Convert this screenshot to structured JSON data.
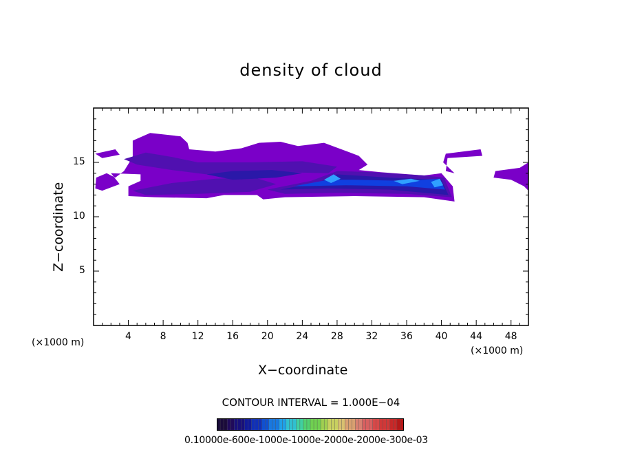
{
  "chart_data": {
    "type": "heatmap",
    "title": "density of cloud",
    "xlabel": "X−coordinate",
    "ylabel": "Z−coordinate",
    "x_unit_left": "(×1000 m)",
    "x_unit_right": "(×1000 m)",
    "xlim": [
      0,
      50
    ],
    "ylim": [
      0,
      20
    ],
    "x_ticks": [
      4,
      8,
      12,
      16,
      20,
      24,
      28,
      32,
      36,
      40,
      44,
      48
    ],
    "y_ticks": [
      5,
      10,
      15
    ],
    "contour_interval_text": "CONTOUR INTERVAL = 1.000E−04",
    "colorbar_labels_text": "0.10000e-600e-1000e-1000e-2000e-2000e-300e-03",
    "colors": {
      "low": "#7a00c8",
      "mid_low": "#5010b0",
      "mid": "#2a18a8",
      "high": "#1040e0",
      "peak": "#30a0ff"
    },
    "regions": [
      {
        "level": "low",
        "points": [
          [
            0.2,
            12.6
          ],
          [
            0.3,
            13.6
          ],
          [
            1.5,
            14.0
          ],
          [
            2.5,
            13.6
          ],
          [
            3.5,
            14.2
          ],
          [
            4.5,
            15.5
          ],
          [
            4.5,
            17.0
          ],
          [
            6.5,
            17.7
          ],
          [
            10.0,
            17.4
          ],
          [
            10.8,
            16.8
          ],
          [
            11.0,
            16.2
          ],
          [
            14.0,
            16.0
          ],
          [
            17.0,
            16.3
          ],
          [
            19.0,
            16.8
          ],
          [
            21.5,
            16.9
          ],
          [
            23.5,
            16.5
          ],
          [
            26.5,
            16.8
          ],
          [
            28.5,
            16.2
          ],
          [
            30.5,
            15.6
          ],
          [
            31.5,
            14.8
          ],
          [
            30.5,
            14.3
          ],
          [
            33.0,
            14.1
          ],
          [
            38.0,
            13.8
          ],
          [
            40.0,
            14.0
          ],
          [
            41.3,
            12.8
          ],
          [
            41.5,
            11.4
          ],
          [
            38.0,
            11.8
          ],
          [
            30.0,
            11.9
          ],
          [
            22.0,
            11.8
          ],
          [
            19.5,
            11.6
          ],
          [
            18.8,
            12.0
          ],
          [
            15.0,
            12.0
          ],
          [
            13.0,
            11.7
          ],
          [
            7.0,
            11.8
          ],
          [
            4.0,
            11.9
          ],
          [
            4.0,
            12.8
          ],
          [
            5.4,
            13.3
          ],
          [
            5.4,
            13.9
          ],
          [
            2.0,
            14.0
          ],
          [
            3.0,
            13.0
          ],
          [
            1.0,
            12.4
          ]
        ]
      },
      {
        "level": "low",
        "points": [
          [
            0.2,
            15.8
          ],
          [
            2.5,
            16.2
          ],
          [
            3.0,
            15.7
          ],
          [
            1.0,
            15.4
          ]
        ]
      },
      {
        "level": "low",
        "points": [
          [
            40.5,
            15.8
          ],
          [
            44.5,
            16.2
          ],
          [
            44.7,
            15.6
          ],
          [
            40.7,
            15.4
          ],
          [
            40.5,
            14.2
          ],
          [
            41.5,
            14.0
          ],
          [
            40.2,
            15.0
          ]
        ]
      },
      {
        "level": "low",
        "points": [
          [
            46.0,
            13.6
          ],
          [
            46.2,
            14.2
          ],
          [
            49.0,
            14.5
          ],
          [
            50.0,
            15.0
          ],
          [
            50.0,
            12.4
          ],
          [
            49.5,
            12.8
          ],
          [
            48.0,
            13.4
          ]
        ]
      },
      {
        "level": "mid_low",
        "points": [
          [
            3.5,
            15.3
          ],
          [
            6.0,
            15.9
          ],
          [
            9.0,
            15.5
          ],
          [
            12.0,
            15.0
          ],
          [
            18.0,
            15.0
          ],
          [
            24.0,
            15.1
          ],
          [
            28.0,
            14.6
          ],
          [
            27.0,
            14.0
          ],
          [
            22.0,
            14.1
          ],
          [
            14.0,
            13.8
          ],
          [
            9.0,
            14.3
          ],
          [
            5.0,
            14.8
          ]
        ]
      },
      {
        "level": "mid_low",
        "points": [
          [
            4.5,
            12.4
          ],
          [
            9.0,
            13.1
          ],
          [
            14.0,
            13.5
          ],
          [
            18.5,
            13.6
          ],
          [
            21.0,
            13.0
          ],
          [
            18.0,
            12.3
          ],
          [
            12.0,
            12.1
          ],
          [
            6.0,
            12.0
          ]
        ]
      },
      {
        "level": "mid_low",
        "points": [
          [
            20.0,
            12.5
          ],
          [
            25.0,
            13.3
          ],
          [
            28.0,
            14.2
          ],
          [
            32.0,
            14.1
          ],
          [
            38.0,
            13.8
          ],
          [
            40.3,
            13.6
          ],
          [
            41.2,
            11.8
          ],
          [
            36.0,
            12.1
          ],
          [
            28.0,
            12.2
          ],
          [
            22.0,
            12.1
          ]
        ]
      },
      {
        "level": "mid",
        "points": [
          [
            13.0,
            13.9
          ],
          [
            16.0,
            14.2
          ],
          [
            20.5,
            14.3
          ],
          [
            24.0,
            14.0
          ],
          [
            21.0,
            13.6
          ],
          [
            16.0,
            13.4
          ]
        ]
      },
      {
        "level": "mid",
        "points": [
          [
            21.5,
            12.5
          ],
          [
            26.0,
            13.2
          ],
          [
            28.0,
            13.9
          ],
          [
            34.0,
            13.6
          ],
          [
            40.0,
            13.4
          ],
          [
            40.8,
            12.0
          ],
          [
            34.0,
            12.5
          ],
          [
            27.0,
            12.6
          ]
        ]
      },
      {
        "level": "high",
        "points": [
          [
            23.0,
            12.8
          ],
          [
            27.0,
            13.4
          ],
          [
            30.0,
            13.4
          ],
          [
            36.0,
            13.3
          ],
          [
            39.8,
            13.5
          ],
          [
            40.4,
            12.5
          ],
          [
            36.0,
            12.8
          ],
          [
            29.0,
            12.9
          ]
        ]
      },
      {
        "level": "peak",
        "points": [
          [
            26.5,
            13.4
          ],
          [
            27.6,
            13.9
          ],
          [
            28.4,
            13.5
          ],
          [
            27.3,
            13.1
          ]
        ]
      },
      {
        "level": "peak",
        "points": [
          [
            34.5,
            13.3
          ],
          [
            36.5,
            13.5
          ],
          [
            37.5,
            13.3
          ],
          [
            35.5,
            13.0
          ]
        ]
      },
      {
        "level": "peak",
        "points": [
          [
            38.8,
            13.2
          ],
          [
            39.8,
            13.5
          ],
          [
            40.2,
            12.9
          ],
          [
            39.2,
            12.7
          ]
        ]
      }
    ]
  }
}
